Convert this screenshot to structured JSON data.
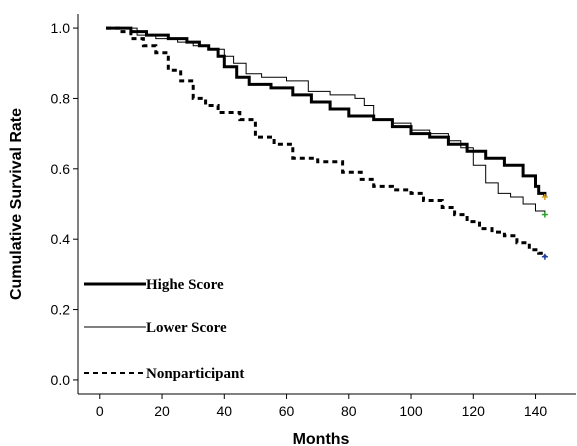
{
  "chart_data": {
    "type": "line",
    "title": "",
    "xlabel": "Months",
    "ylabel": "Cumulative Survival Rate",
    "xlim": [
      -7,
      153
    ],
    "ylim": [
      -0.04,
      1.04
    ],
    "x_ticks": [
      0,
      20,
      40,
      60,
      80,
      100,
      120,
      140
    ],
    "y_ticks": [
      0.0,
      0.2,
      0.4,
      0.6,
      0.8,
      1.0
    ],
    "x_tick_labels": [
      "0",
      "20",
      "40",
      "60",
      "80",
      "100",
      "120",
      "140"
    ],
    "y_tick_labels": [
      "0.0",
      "0.2",
      "0.4",
      "0.6",
      "0.8",
      "1.0"
    ],
    "grid": false,
    "legend_position": "bottom-left",
    "series": [
      {
        "name": "Highe Score",
        "style": "thick-solid",
        "color": "#000000",
        "censor_color": "#d4a017",
        "points": [
          [
            2,
            1.0
          ],
          [
            8,
            1.0
          ],
          [
            10,
            0.99
          ],
          [
            15,
            0.98
          ],
          [
            22,
            0.97
          ],
          [
            28,
            0.96
          ],
          [
            32,
            0.95
          ],
          [
            35,
            0.94
          ],
          [
            38,
            0.92
          ],
          [
            40,
            0.89
          ],
          [
            44,
            0.86
          ],
          [
            48,
            0.84
          ],
          [
            55,
            0.83
          ],
          [
            62,
            0.81
          ],
          [
            68,
            0.79
          ],
          [
            74,
            0.77
          ],
          [
            80,
            0.75
          ],
          [
            88,
            0.74
          ],
          [
            94,
            0.72
          ],
          [
            100,
            0.7
          ],
          [
            106,
            0.69
          ],
          [
            112,
            0.67
          ],
          [
            118,
            0.65
          ],
          [
            124,
            0.63
          ],
          [
            130,
            0.61
          ],
          [
            136,
            0.58
          ],
          [
            140,
            0.55
          ],
          [
            141,
            0.53
          ],
          [
            143,
            0.52
          ]
        ]
      },
      {
        "name": "Lower Score",
        "style": "thin-solid",
        "color": "#000000",
        "censor_color": "#2ca02c",
        "points": [
          [
            2,
            1.0
          ],
          [
            8,
            1.0
          ],
          [
            12,
            0.98
          ],
          [
            18,
            0.97
          ],
          [
            25,
            0.96
          ],
          [
            30,
            0.95
          ],
          [
            35,
            0.94
          ],
          [
            40,
            0.92
          ],
          [
            43,
            0.9
          ],
          [
            47,
            0.87
          ],
          [
            52,
            0.86
          ],
          [
            60,
            0.85
          ],
          [
            67,
            0.82
          ],
          [
            74,
            0.81
          ],
          [
            82,
            0.8
          ],
          [
            85,
            0.78
          ],
          [
            88,
            0.74
          ],
          [
            94,
            0.73
          ],
          [
            100,
            0.71
          ],
          [
            106,
            0.7
          ],
          [
            112,
            0.68
          ],
          [
            116,
            0.66
          ],
          [
            120,
            0.61
          ],
          [
            124,
            0.56
          ],
          [
            128,
            0.53
          ],
          [
            132,
            0.52
          ],
          [
            136,
            0.5
          ],
          [
            140,
            0.48
          ],
          [
            143,
            0.47
          ]
        ]
      },
      {
        "name": "Nonparticipant",
        "style": "dashed",
        "color": "#000000",
        "censor_color": "#1f3fa0",
        "points": [
          [
            2,
            1.0
          ],
          [
            6,
            0.99
          ],
          [
            10,
            0.97
          ],
          [
            14,
            0.95
          ],
          [
            18,
            0.93
          ],
          [
            22,
            0.88
          ],
          [
            26,
            0.85
          ],
          [
            30,
            0.8
          ],
          [
            34,
            0.78
          ],
          [
            38,
            0.76
          ],
          [
            45,
            0.74
          ],
          [
            50,
            0.69
          ],
          [
            56,
            0.67
          ],
          [
            62,
            0.63
          ],
          [
            70,
            0.62
          ],
          [
            78,
            0.59
          ],
          [
            84,
            0.57
          ],
          [
            88,
            0.55
          ],
          [
            94,
            0.54
          ],
          [
            100,
            0.53
          ],
          [
            104,
            0.51
          ],
          [
            110,
            0.49
          ],
          [
            114,
            0.47
          ],
          [
            118,
            0.45
          ],
          [
            122,
            0.43
          ],
          [
            126,
            0.42
          ],
          [
            130,
            0.41
          ],
          [
            134,
            0.39
          ],
          [
            138,
            0.37
          ],
          [
            141,
            0.36
          ],
          [
            143,
            0.35
          ]
        ]
      }
    ]
  }
}
